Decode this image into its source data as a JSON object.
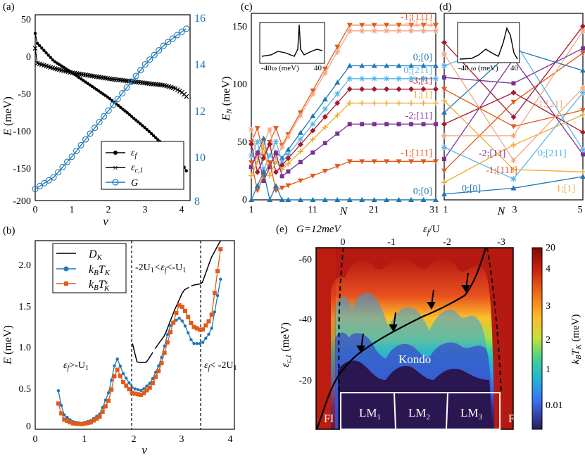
{
  "chart_data": [
    {
      "panel": "(a)",
      "type": "line",
      "xlabel": "ν",
      "ylabel": "E  (meV)",
      "ylabel_right": "",
      "xlim": [
        0,
        4.2
      ],
      "ylim": [
        -200,
        50
      ],
      "ylim_right": [
        8,
        16
      ],
      "xticks": [
        "0",
        "1",
        "2",
        "3",
        "4"
      ],
      "yticks": [
        "50",
        "0",
        "-50",
        "-100",
        "-150",
        "-200"
      ],
      "yticks_right": [
        "8",
        "10",
        "12",
        "14",
        "16"
      ],
      "legend": [
        "ε_f",
        "ε_{c,1}",
        "G"
      ],
      "series": [
        {
          "name": "ε_f",
          "color": "#000000",
          "marker": "dot",
          "axis": "left",
          "x": [
            0,
            0.05,
            0.5,
            1.0,
            1.5,
            2.0,
            2.5,
            3.0,
            3.5,
            4.0,
            4.1
          ],
          "y": [
            25,
            12,
            -12,
            -28,
            -45,
            -62,
            -82,
            -103,
            -126,
            -152,
            -160
          ]
        },
        {
          "name": "ε_{c,1}",
          "color": "#000000",
          "marker": "x",
          "axis": "left",
          "x": [
            0,
            0.05,
            0.5,
            1.0,
            1.5,
            2.0,
            2.5,
            3.0,
            3.5,
            3.8,
            4.0,
            4.1
          ],
          "y": [
            5,
            -15,
            -22,
            -28,
            -32,
            -36,
            -39,
            -42,
            -45,
            -49,
            -55,
            -60
          ]
        },
        {
          "name": "G",
          "color": "#1f77b4",
          "marker": "open-circle",
          "axis": "right",
          "x": [
            0,
            0.5,
            1.0,
            1.5,
            2.0,
            2.5,
            3.0,
            3.5,
            4.0,
            4.1
          ],
          "y": [
            8.5,
            9.0,
            9.9,
            10.9,
            11.9,
            12.9,
            13.9,
            14.7,
            15.3,
            15.4
          ]
        }
      ]
    },
    {
      "panel": "(b)",
      "type": "line",
      "xlabel": "ν",
      "ylabel": "E  (meV)",
      "xlim": [
        0,
        4.3
      ],
      "ylim": [
        0,
        2.2
      ],
      "xticks": [
        "0",
        "1",
        "2",
        "3",
        "4"
      ],
      "yticks": [
        "0",
        "0.5",
        "1.0",
        "1.5",
        "2.0"
      ],
      "legend": [
        "D_K",
        "k_B T_K",
        "k_B T_K^s"
      ],
      "annotations": [
        "-2U₁<ε_f<-U₁",
        "ε_f>-U₁",
        "ε_f< -2U₁"
      ],
      "vlines": [
        1.93,
        3.43
      ],
      "series": [
        {
          "name": "D_K",
          "color": "#000000",
          "x": [
            2.1,
            2.2,
            2.4,
            2.6,
            2.8,
            3.0,
            3.2,
            3.4,
            3.6,
            3.8,
            3.9,
            4.0
          ],
          "y": [
            1.0,
            0.78,
            0.78,
            0.95,
            1.1,
            1.38,
            1.62,
            1.68,
            1.7,
            2.0,
            2.1,
            2.2
          ]
        },
        {
          "name": "k_B T_K",
          "color": "#1f77b4",
          "x": [
            0.5,
            0.6,
            0.8,
            1.0,
            1.2,
            1.4,
            1.6,
            1.75,
            1.9,
            2.1,
            2.3,
            2.5,
            2.7,
            2.9,
            3.1,
            3.2,
            3.4,
            3.6,
            3.8,
            4.0
          ],
          "y": [
            0.45,
            0.18,
            0.09,
            0.07,
            0.1,
            0.18,
            0.45,
            0.85,
            0.65,
            0.48,
            0.45,
            0.55,
            0.78,
            1.2,
            1.3,
            1.25,
            1.0,
            1.0,
            1.15,
            1.75
          ]
        },
        {
          "name": "k_B T_K^s",
          "color": "#e05a1b",
          "x": [
            0.5,
            0.6,
            0.8,
            1.0,
            1.2,
            1.4,
            1.6,
            1.75,
            1.9,
            2.1,
            2.3,
            2.5,
            2.7,
            2.9,
            3.1,
            3.2,
            3.4,
            3.6,
            3.8,
            4.0
          ],
          "y": [
            0.3,
            0.12,
            0.07,
            0.06,
            0.08,
            0.15,
            0.35,
            0.72,
            0.55,
            0.42,
            0.4,
            0.5,
            0.72,
            1.1,
            1.45,
            1.42,
            1.2,
            1.15,
            1.3,
            2.1
          ]
        }
      ]
    },
    {
      "panel": "(c)",
      "type": "line",
      "xlabel": "N",
      "ylabel": "E_N  (meV)",
      "xlim": [
        1,
        31
      ],
      "ylim": [
        0,
        160
      ],
      "xticks": [
        "1",
        "11",
        "21",
        "31"
      ],
      "yticks": [
        "0",
        "50",
        "100",
        "150"
      ],
      "inset": {
        "xlabel": "ω (meV)",
        "xticks": [
          "-40",
          "40"
        ]
      },
      "levels": [
        {
          "label": "-1;[111]",
          "color": "#e05a1b",
          "marker": "triangle-down",
          "value": 150
        },
        {
          "label": "-1;[21]",
          "color": "#f4a582",
          "marker": "star",
          "value": 145
        },
        {
          "label": "0;[0]",
          "color": "#1f77b4",
          "marker": "triangle",
          "value": 115
        },
        {
          "label": "0;[211]",
          "color": "#56b4e9",
          "marker": "star",
          "value": 104
        },
        {
          "label": "-3;[1]",
          "color": "#a6192e",
          "marker": "diamond",
          "value": 95
        },
        {
          "label": "1;[1]",
          "color": "#f0a830",
          "marker": "plus",
          "value": 83
        },
        {
          "label": "-2;[11]",
          "color": "#7b3294",
          "marker": "square",
          "value": 65
        },
        {
          "label": "-1;[111]",
          "color": "#e05a1b",
          "marker": "triangle-down",
          "value": 33
        },
        {
          "label": "0;[0]",
          "color": "#1f77b4",
          "marker": "triangle",
          "value": 0
        }
      ]
    },
    {
      "panel": "(d)",
      "type": "line",
      "xlabel": "N",
      "xlim": [
        1,
        5
      ],
      "xticks": [
        "1",
        "3",
        "5"
      ],
      "inset": {
        "xlabel": "ω (meV)",
        "xticks": [
          "-40",
          "40"
        ]
      },
      "labels": [
        "-1;[21]",
        "-2;[11]",
        "0;[211]",
        "-1;[111]",
        "0;[0]",
        "1;[1]"
      ]
    },
    {
      "panel": "(e)",
      "type": "heatmap",
      "title": "G=12meV",
      "xlabel_top": "ε_f/U",
      "xticks_top": [
        "0",
        "-1",
        "-2",
        "-3"
      ],
      "ylabel": "ε_{c,1}  (meV)",
      "yticks": [
        "-60",
        "-40",
        "-20"
      ],
      "colorbar_label": "k_B T_K  (meV)",
      "colorbar_ticks": [
        "20",
        "4",
        "3",
        "2",
        "1",
        "0.01"
      ],
      "regions": [
        "Kondo",
        "LM₁",
        "LM₂",
        "LM₃",
        "FI",
        "FI"
      ]
    }
  ],
  "labels": {
    "a": "(a)",
    "b": "(b)",
    "c": "(c)",
    "d": "(d)",
    "e": "(e)",
    "a_ylabel_E": "E",
    "a_ylabel_unit": "(meV)",
    "a_xlabel": "ν",
    "b_ylabel_E": "E",
    "b_ylabel_unit": "(meV)",
    "b_xlabel": "ν",
    "b_ann_mid": "-2U",
    "b_ann_mid2": "<ε",
    "b_ann_mid3": "<-U",
    "b_ann_left1": "ε",
    "b_ann_left2": ">-U",
    "b_ann_right1": "ε",
    "b_ann_right2": "< -2U",
    "c_ylabel": "E",
    "c_ylabel_sub": "N",
    "c_ylabel_unit": "(meV)",
    "c_xlabel": "N",
    "d_xlabel": "N",
    "e_title": "G=12meV",
    "e_top_label": "ε",
    "e_top_label2": "/U",
    "e_ylabel": "ε",
    "e_ylabel_sub": "c,1",
    "e_ylabel_unit": "(meV)",
    "e_cbar_label": "k",
    "e_cbar_label2": "T",
    "e_cbar_unit": "(meV)",
    "e_kondo": "Kondo",
    "e_lm1": "LM",
    "e_lm2": "LM",
    "e_lm3": "LM",
    "e_fi_left": "FI",
    "e_fi_right": "FI",
    "one": "1",
    "two": "2",
    "three": "3",
    "sub_f": "f",
    "sub_B": "B",
    "sub_K": "K",
    "sup_s": "s",
    "legend_a_ef": "ε",
    "legend_a_ec": "ε",
    "legend_a_ec_sub": "c,1",
    "legend_a_G": "G",
    "legend_b_DK": "D",
    "legend_b_kB": "k",
    "legend_b_T": "T",
    "legend_b_kB2": "k",
    "legend_b_T2": "T",
    "inset_xlabel": "ω (meV)",
    "inset_m40": "-40",
    "inset_40": "40"
  },
  "colors": {
    "black": "#000000",
    "blue": "#1f77b4",
    "orange": "#e05a1b",
    "red": "#a6192e",
    "purple": "#7b3294",
    "gold": "#f0a830",
    "peach": "#f4a582",
    "lightblue": "#56b4e9"
  }
}
